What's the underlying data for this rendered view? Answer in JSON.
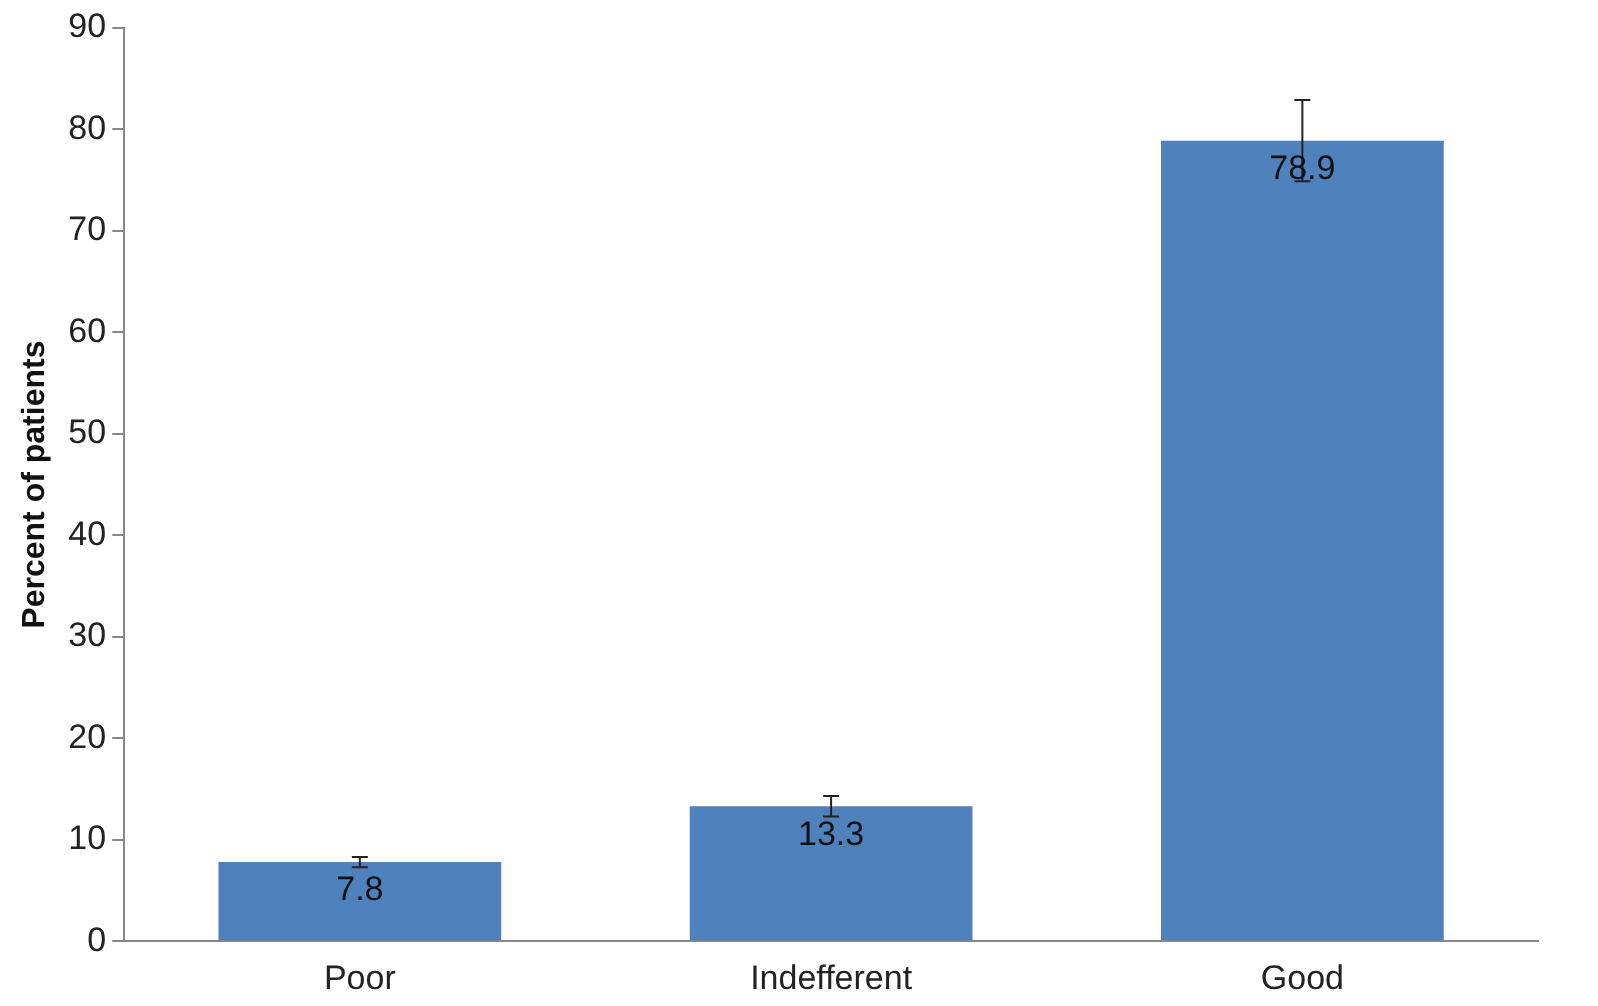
{
  "chart_data": {
    "type": "bar",
    "ylabel": "Percent of patients",
    "categories": [
      "Poor",
      "Indefferent",
      "Good"
    ],
    "values": [
      7.8,
      13.3,
      78.9
    ],
    "color": "#4f81bd",
    "errors": [
      0.5,
      1,
      4
    ],
    "ylim": [
      0,
      90
    ],
    "yticks": [
      0,
      10,
      20,
      30,
      40,
      50,
      60,
      70,
      80,
      90
    ],
    "grid": false,
    "data_labels": true
  }
}
